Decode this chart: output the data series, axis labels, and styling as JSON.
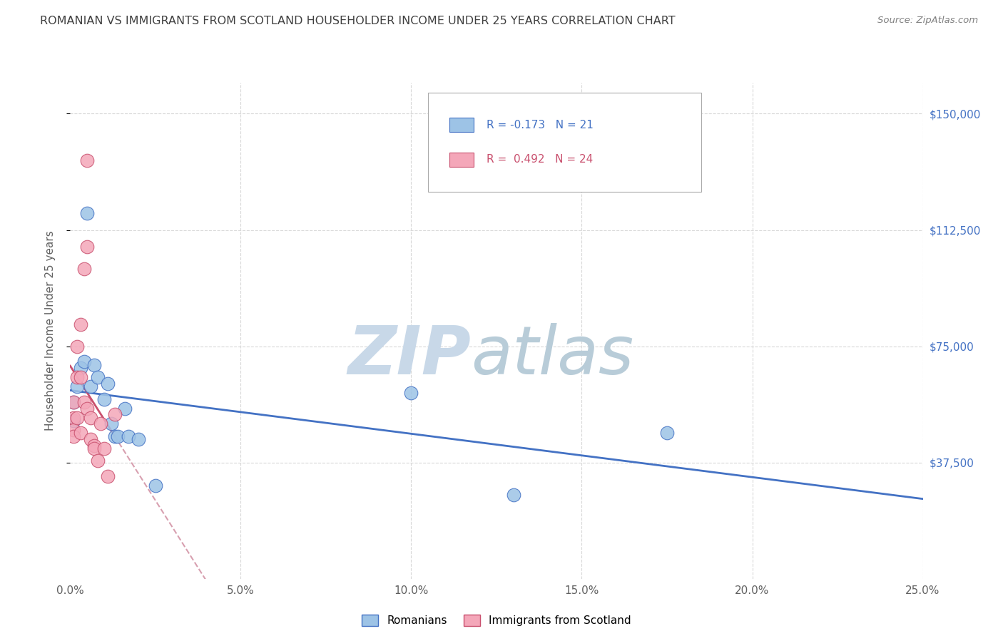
{
  "title": "ROMANIAN VS IMMIGRANTS FROM SCOTLAND HOUSEHOLDER INCOME UNDER 25 YEARS CORRELATION CHART",
  "source": "Source: ZipAtlas.com",
  "ylabel": "Householder Income Under 25 years",
  "xlabel_ticks": [
    "0.0%",
    "5.0%",
    "10.0%",
    "15.0%",
    "20.0%",
    "25.0%"
  ],
  "xlabel_vals": [
    0.0,
    0.05,
    0.1,
    0.15,
    0.2,
    0.25
  ],
  "ylabel_ticks": [
    "$37,500",
    "$75,000",
    "$112,500",
    "$150,000"
  ],
  "ylabel_vals": [
    37500,
    75000,
    112500,
    150000
  ],
  "xlim": [
    0,
    0.25
  ],
  "ylim": [
    0,
    160000
  ],
  "romanians_x": [
    0.001,
    0.001,
    0.002,
    0.003,
    0.004,
    0.005,
    0.006,
    0.007,
    0.008,
    0.01,
    0.011,
    0.012,
    0.013,
    0.014,
    0.016,
    0.017,
    0.02,
    0.025,
    0.1,
    0.175,
    0.13
  ],
  "romanians_y": [
    57000,
    51000,
    62000,
    68000,
    70000,
    118000,
    62000,
    69000,
    65000,
    58000,
    63000,
    50000,
    46000,
    46000,
    55000,
    46000,
    45000,
    30000,
    60000,
    47000,
    27000
  ],
  "scotland_x": [
    0.001,
    0.001,
    0.001,
    0.001,
    0.002,
    0.002,
    0.002,
    0.003,
    0.003,
    0.003,
    0.004,
    0.004,
    0.005,
    0.005,
    0.005,
    0.006,
    0.006,
    0.007,
    0.007,
    0.008,
    0.009,
    0.01,
    0.011,
    0.013
  ],
  "scotland_y": [
    57000,
    52000,
    48000,
    46000,
    75000,
    65000,
    52000,
    82000,
    65000,
    47000,
    100000,
    57000,
    135000,
    107000,
    55000,
    52000,
    45000,
    43000,
    42000,
    38000,
    50000,
    42000,
    33000,
    53000
  ],
  "romanian_color": "#9dc3e6",
  "scotland_color": "#f4a7b9",
  "trendline_romanian_color": "#4472c4",
  "trendline_scotland_color": "#c9506e",
  "trendline_scotland_dashed_color": "#d8a0b0",
  "background_color": "#ffffff",
  "grid_color": "#d8d8d8",
  "title_color": "#404040",
  "source_color": "#808080",
  "axis_label_color": "#606060",
  "right_tick_color": "#4472c4",
  "watermark_zip_color": "#c8d8e8",
  "watermark_atlas_color": "#b8ccd8"
}
